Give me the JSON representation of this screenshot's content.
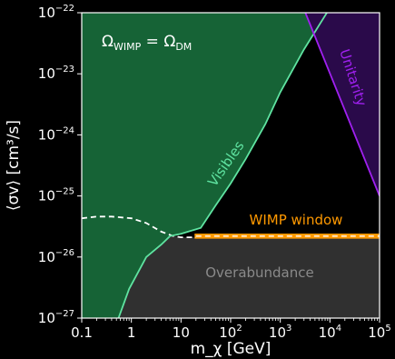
{
  "chart_data": {
    "type": "area",
    "xscale": "log",
    "yscale": "log",
    "xlim": [
      0.1,
      100000
    ],
    "ylim": [
      1e-27,
      1e-22
    ],
    "xlabel": "m_χ [GeV]",
    "ylabel": "⟨σv⟩ [cm³/s]",
    "xticks": [
      {
        "value": 0.1,
        "label": "0.1"
      },
      {
        "value": 1,
        "label": "1"
      },
      {
        "value": 10,
        "label": "10"
      },
      {
        "value": 100,
        "base": "10",
        "exp": "2"
      },
      {
        "value": 1000,
        "base": "10",
        "exp": "3"
      },
      {
        "value": 10000,
        "base": "10",
        "exp": "4"
      },
      {
        "value": 100000,
        "base": "10",
        "exp": "5"
      }
    ],
    "yticks": [
      {
        "value": 1e-22,
        "base": "10",
        "exp": "−22"
      },
      {
        "value": 1e-23,
        "base": "10",
        "exp": "−23"
      },
      {
        "value": 1e-24,
        "base": "10",
        "exp": "−24"
      },
      {
        "value": 1e-25,
        "base": "10",
        "exp": "−25"
      },
      {
        "value": 1e-26,
        "base": "10",
        "exp": "−26"
      },
      {
        "value": 1e-27,
        "base": "10",
        "exp": "−27"
      }
    ],
    "annotation": {
      "main": "Ω",
      "sub1": "WIMP",
      "eq": " = ",
      "main2": "Ω",
      "sub2": "DM"
    },
    "regions": [
      {
        "name": "Visibles",
        "fill": "#166336",
        "boundary_color": "#5fe3a1",
        "boundary": [
          [
            0.55,
            1e-27
          ],
          [
            0.9,
            3e-27
          ],
          [
            2,
            1e-26
          ],
          [
            4,
            1.6e-26
          ],
          [
            6,
            2.2e-26
          ],
          [
            10,
            2.4e-26
          ],
          [
            25,
            3e-26
          ],
          [
            50,
            7e-26
          ],
          [
            100,
            1.6e-25
          ],
          [
            200,
            4e-25
          ],
          [
            500,
            1.5e-24
          ],
          [
            1000,
            5e-24
          ],
          [
            3000,
            2.5e-23
          ],
          [
            10000,
            1.2e-22
          ]
        ]
      },
      {
        "name": "Unitarity",
        "fill": "#2a0a4a",
        "boundary_color": "#a020f0",
        "boundary": [
          [
            3200,
            1e-22
          ],
          [
            100000,
            1e-25
          ]
        ]
      },
      {
        "name": "Overabundance",
        "fill": "#303030",
        "boundary": [
          [
            0.1,
            4.3e-26
          ],
          [
            0.2,
            4.6e-26
          ],
          [
            0.4,
            4.6e-26
          ],
          [
            1,
            4.3e-26
          ],
          [
            2,
            3.6e-26
          ],
          [
            4,
            2.6e-26
          ],
          [
            7,
            2.2e-26
          ],
          [
            10,
            2.1e-26
          ],
          [
            20,
            2.1e-26
          ],
          [
            100,
            2.2e-26
          ],
          [
            1000,
            2.2e-26
          ],
          [
            100000,
            2.3e-26
          ]
        ]
      }
    ],
    "wimp_window": {
      "name": "WIMP window",
      "color": "#ff9900",
      "x": [
        20,
        100000
      ],
      "y": [
        2.1e-26,
        2.3e-26
      ]
    },
    "dashed_line": {
      "color": "#ffffff",
      "points": [
        [
          0.1,
          4.3e-26
        ],
        [
          0.2,
          4.6e-26
        ],
        [
          0.4,
          4.6e-26
        ],
        [
          1,
          4.3e-26
        ],
        [
          2,
          3.6e-26
        ],
        [
          4,
          2.6e-26
        ],
        [
          7,
          2.2e-26
        ],
        [
          10,
          2.1e-26
        ],
        [
          20,
          2.1e-26
        ]
      ]
    },
    "labels": {
      "visibles": "Visibles",
      "unitarity": "Unitarity",
      "wimp_window": "WIMP window",
      "overabundance": "Overabundance"
    }
  }
}
